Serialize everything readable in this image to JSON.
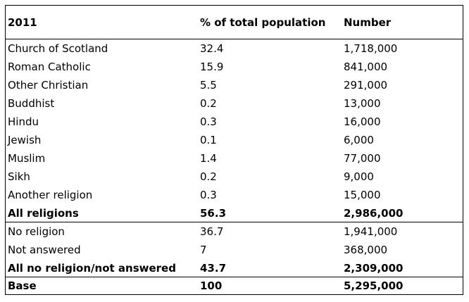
{
  "table": {
    "header": {
      "year": "2011",
      "percent": "% of total population",
      "number": "Number"
    },
    "religions": [
      {
        "name": "Church of Scotland",
        "percent": "32.4",
        "number": "1,718,000"
      },
      {
        "name": "Roman Catholic",
        "percent": "15.9",
        "number": "841,000"
      },
      {
        "name": "Other Christian",
        "percent": "5.5",
        "number": "291,000"
      },
      {
        "name": "Buddhist",
        "percent": "0.2",
        "number": "13,000"
      },
      {
        "name": "Hindu",
        "percent": "0.3",
        "number": "16,000"
      },
      {
        "name": "Jewish",
        "percent": "0.1",
        "number": "6,000"
      },
      {
        "name": "Muslim",
        "percent": "1.4",
        "number": "77,000"
      },
      {
        "name": "Sikh",
        "percent": "0.2",
        "number": "9,000"
      },
      {
        "name": "Another religion",
        "percent": "0.3",
        "number": "15,000"
      }
    ],
    "all_religions": {
      "name": "All religions",
      "percent": "56.3",
      "number": "2,986,000"
    },
    "no_religion_group": [
      {
        "name": "No religion",
        "percent": "36.7",
        "number": "1,941,000"
      },
      {
        "name": "Not answered",
        "percent": "7",
        "number": "368,000"
      }
    ],
    "all_no_religion": {
      "name": "All no religion/not answered",
      "percent": "43.7",
      "number": "2,309,000"
    },
    "base": {
      "name": "Base",
      "percent": "100",
      "number": "5,295,000"
    }
  }
}
